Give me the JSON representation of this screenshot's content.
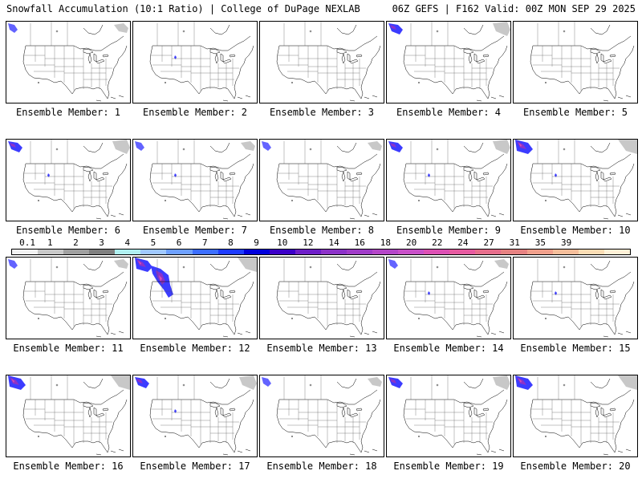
{
  "header": {
    "title_left": "Snowfall Accumulation (10:1 Ratio) | College of DuPage NEXLAB",
    "title_right": "06Z GEFS | F162 Valid: 00Z MON SEP 29 2025"
  },
  "panels": [
    {
      "label": "Ensemble Member: 1",
      "canada_snow": "light",
      "rockies": "none"
    },
    {
      "label": "Ensemble Member: 2",
      "canada_snow": "none",
      "rockies": "light"
    },
    {
      "label": "Ensemble Member: 3",
      "canada_snow": "none",
      "rockies": "none"
    },
    {
      "label": "Ensemble Member: 4",
      "canada_snow": "medium",
      "rockies": "none"
    },
    {
      "label": "Ensemble Member: 5",
      "canada_snow": "none",
      "rockies": "none"
    },
    {
      "label": "Ensemble Member: 6",
      "canada_snow": "medium",
      "rockies": "light"
    },
    {
      "label": "Ensemble Member: 7",
      "canada_snow": "light",
      "rockies": "light"
    },
    {
      "label": "Ensemble Member: 8",
      "canada_snow": "light",
      "rockies": "none"
    },
    {
      "label": "Ensemble Member: 9",
      "canada_snow": "medium",
      "rockies": "light"
    },
    {
      "label": "Ensemble Member: 10",
      "canada_snow": "heavy",
      "rockies": "light"
    },
    {
      "label": "Ensemble Member: 11",
      "canada_snow": "light",
      "rockies": "none"
    },
    {
      "label": "Ensemble Member: 12",
      "canada_snow": "heavy",
      "rockies": "heavy"
    },
    {
      "label": "Ensemble Member: 13",
      "canada_snow": "none",
      "rockies": "none"
    },
    {
      "label": "Ensemble Member: 14",
      "canada_snow": "light",
      "rockies": "light"
    },
    {
      "label": "Ensemble Member: 15",
      "canada_snow": "none",
      "rockies": "light"
    },
    {
      "label": "Ensemble Member: 16",
      "canada_snow": "heavy",
      "rockies": "none"
    },
    {
      "label": "Ensemble Member: 17",
      "canada_snow": "medium",
      "rockies": "light"
    },
    {
      "label": "Ensemble Member: 18",
      "canada_snow": "light",
      "rockies": "none"
    },
    {
      "label": "Ensemble Member: 19",
      "canada_snow": "medium",
      "rockies": "none"
    },
    {
      "label": "Ensemble Member: 20",
      "canada_snow": "heavy",
      "rockies": "none"
    }
  ],
  "colorbar": {
    "labels": [
      "0.1",
      "1",
      "2",
      "3",
      "4",
      "5",
      "6",
      "7",
      "8",
      "9",
      "10",
      "12",
      "14",
      "16",
      "18",
      "20",
      "22",
      "24",
      "27",
      "31",
      "35",
      "39"
    ],
    "colors": [
      "#f2f2f2",
      "#c8c8c8",
      "#a0a0a0",
      "#808080",
      "#b0f0f0",
      "#a0c8ff",
      "#6ea0ff",
      "#3c6eff",
      "#1e3cff",
      "#0000dc",
      "#3c00c8",
      "#6e1ec8",
      "#8c32c8",
      "#a03cc8",
      "#b446c8",
      "#c850c8",
      "#dc50b4",
      "#e65aa0",
      "#e66e8c",
      "#e68282",
      "#f0a08c",
      "#f5be9b",
      "#fadcb4",
      "#fff0d7"
    ]
  },
  "colors": {
    "snow_light": "#c8c8c8",
    "snow_blue": "#3c3cff",
    "snow_purple": "#8c32c8",
    "snow_magenta": "#dc50b4"
  }
}
